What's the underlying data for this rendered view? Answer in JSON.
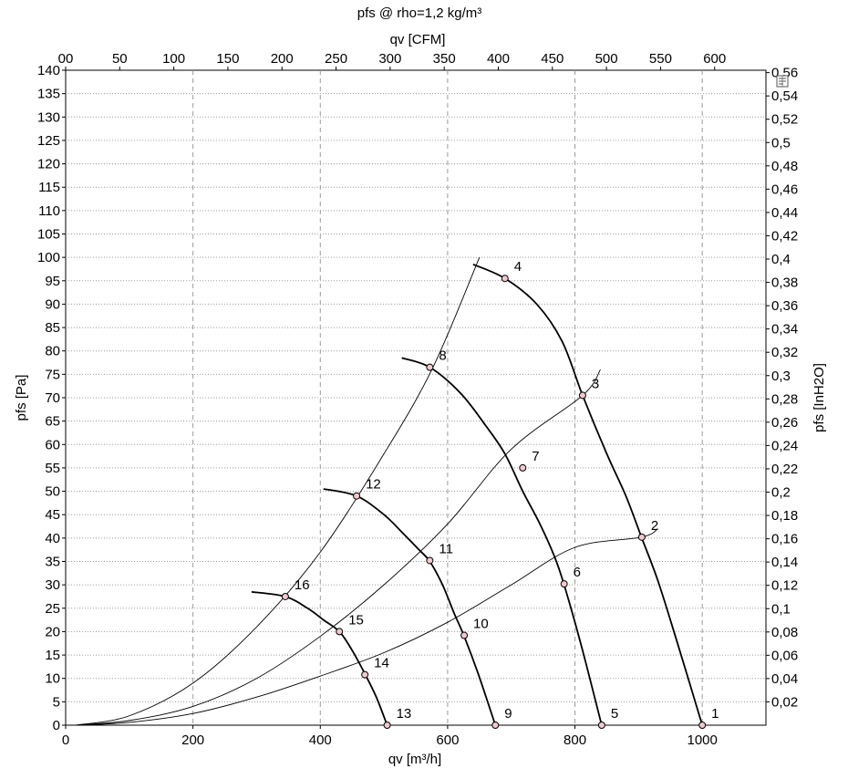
{
  "chart_data": {
    "type": "line",
    "title": "pfs @ rho=1,2 kg/m³",
    "xlabel": "qv [m³/h]",
    "x2label": "qv [CFM]",
    "ylabel": "pfs [Pa]",
    "y2label": "pfs [InH2O]",
    "xlim": [
      0,
      1100
    ],
    "ylim": [
      0,
      140
    ],
    "x_ticks": [
      0,
      200,
      400,
      600,
      800,
      1000
    ],
    "x_tick_labels": [
      "0",
      "200",
      "400",
      "600",
      "800",
      "1000"
    ],
    "x2_ticks": [
      0,
      50,
      100,
      150,
      200,
      250,
      300,
      350,
      400,
      450,
      500,
      550,
      600
    ],
    "x2_tick_labels": [
      "00",
      "50",
      "100",
      "150",
      "200",
      "250",
      "300",
      "350",
      "400",
      "450",
      "500",
      "550",
      "600"
    ],
    "y_ticks": [
      0,
      5,
      10,
      15,
      20,
      25,
      30,
      35,
      40,
      45,
      50,
      55,
      60,
      65,
      70,
      75,
      80,
      85,
      90,
      95,
      100,
      105,
      110,
      115,
      120,
      125,
      130,
      135,
      140
    ],
    "y_tick_labels": [
      "0",
      "5",
      "10",
      "15",
      "20",
      "25",
      "30",
      "35",
      "40",
      "45",
      "50",
      "55",
      "60",
      "65",
      "70",
      "75",
      "80",
      "85",
      "90",
      "95",
      "100",
      "105",
      "110",
      "115",
      "120",
      "125",
      "130",
      "135",
      "140"
    ],
    "y2_ticks": [
      0.02,
      0.04,
      0.06,
      0.08,
      0.1,
      0.12,
      0.14,
      0.16,
      0.18,
      0.2,
      0.22,
      0.24,
      0.26,
      0.28,
      0.3,
      0.32,
      0.34,
      0.36,
      0.38,
      0.4,
      0.42,
      0.44,
      0.46,
      0.48,
      0.5,
      0.52,
      0.54,
      0.56
    ],
    "y2_tick_labels": [
      "0,02",
      "0,04",
      "0,06",
      "0,08",
      "0,1",
      "0,12",
      "0,14",
      "0,16",
      "0,18",
      "0,2",
      "0,22",
      "0,24",
      "0,26",
      "0,28",
      "0,3",
      "0,32",
      "0,34",
      "0,36",
      "0,38",
      "0,4",
      "0,42",
      "0,44",
      "0,46",
      "0,48",
      "0,5",
      "0,52",
      "0,54",
      "0,56"
    ],
    "grid_x": [
      200,
      400,
      600,
      800,
      1000
    ],
    "fan_curves": [
      {
        "x": [
          640,
          690,
          740,
          780,
          812,
          850,
          880,
          905,
          930,
          960,
          1000
        ],
        "y": [
          98.5,
          95.5,
          90,
          82,
          70.5,
          58,
          49,
          40,
          31,
          18,
          0
        ]
      },
      {
        "x": [
          528,
          572,
          620,
          660,
          690,
          718,
          745,
          768,
          783,
          810,
          842
        ],
        "y": [
          78.5,
          76.5,
          71,
          64,
          58,
          50,
          43,
          36,
          30,
          17,
          0
        ]
      },
      {
        "x": [
          405,
          457,
          500,
          530,
          555,
          572,
          592,
          610,
          626,
          648,
          675
        ],
        "y": [
          50.5,
          49,
          45,
          41,
          37.5,
          35,
          30,
          24,
          19,
          11,
          0
        ]
      },
      {
        "x": [
          292,
          345,
          380,
          405,
          430,
          450,
          470,
          488,
          505
        ],
        "y": [
          28.5,
          27.5,
          25,
          22.5,
          20,
          16,
          11,
          6,
          0
        ]
      }
    ],
    "system_curves": [
      {
        "x": [
          15,
          100,
          200,
          300,
          400,
          500,
          577,
          650
        ],
        "y": [
          0,
          2,
          9,
          21,
          37,
          58,
          76.5,
          100
        ]
      },
      {
        "x": [
          15,
          100,
          200,
          300,
          400,
          500,
          600,
          700,
          812,
          840
        ],
        "y": [
          0,
          1,
          4,
          10,
          19,
          30,
          43,
          59,
          70.5,
          76
        ]
      },
      {
        "x": [
          15,
          100,
          200,
          300,
          400,
          500,
          600,
          700,
          800,
          905,
          930
        ],
        "y": [
          0,
          0.6,
          2.5,
          6,
          10.5,
          15.5,
          22,
          30,
          38,
          40.2,
          42
        ]
      }
    ],
    "points": [
      {
        "label": "1",
        "x": 1000,
        "y": 0
      },
      {
        "label": "2",
        "x": 905,
        "y": 40.2
      },
      {
        "label": "3",
        "x": 812,
        "y": 70.5
      },
      {
        "label": "4",
        "x": 690,
        "y": 95.5
      },
      {
        "label": "5",
        "x": 842,
        "y": 0
      },
      {
        "label": "6",
        "x": 783,
        "y": 30.2
      },
      {
        "label": "7",
        "x": 718,
        "y": 55
      },
      {
        "label": "8",
        "x": 572,
        "y": 76.5
      },
      {
        "label": "9",
        "x": 675,
        "y": 0
      },
      {
        "label": "10",
        "x": 626,
        "y": 19.2
      },
      {
        "label": "11",
        "x": 572,
        "y": 35.2
      },
      {
        "label": "12",
        "x": 457,
        "y": 49
      },
      {
        "label": "13",
        "x": 505,
        "y": 0
      },
      {
        "label": "14",
        "x": 470,
        "y": 10.8
      },
      {
        "label": "15",
        "x": 430,
        "y": 20
      },
      {
        "label": "16",
        "x": 345,
        "y": 27.5
      }
    ]
  },
  "icons": {
    "corner": "print-preview-icon"
  }
}
